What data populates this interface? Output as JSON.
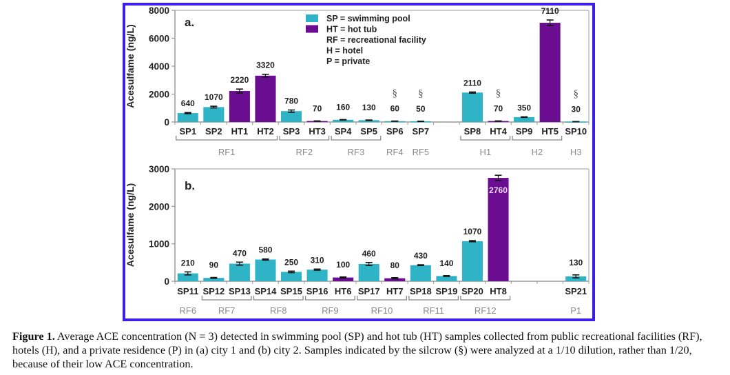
{
  "colors": {
    "frame": "#3b1ee8",
    "swimming_pool": "#2fb3c6",
    "hot_tub": "#6a0d91",
    "axis": "#999999",
    "group_label": "#8a8a8a",
    "value_label": "#222222"
  },
  "legend": {
    "items": [
      {
        "swatch": "swimming_pool",
        "text": "SP = swimming pool"
      },
      {
        "swatch": "hot_tub",
        "text": "HT = hot tub"
      },
      {
        "swatch": null,
        "text": "RF = recreational facility"
      },
      {
        "swatch": null,
        "text": "H   = hotel"
      },
      {
        "swatch": null,
        "text": "P   = private"
      }
    ]
  },
  "chart_data": [
    {
      "type": "bar",
      "panel_label": "a.",
      "ylabel": "Acesulfame (ng/L)",
      "ylim": [
        0,
        8000
      ],
      "yticks": [
        0,
        2000,
        4000,
        6000,
        8000
      ],
      "slots": 16,
      "legend_position": "top-center",
      "bars": [
        {
          "slot": 0,
          "label": "SP1",
          "kind": "SP",
          "value": 640,
          "err": 40,
          "value_label": "640"
        },
        {
          "slot": 1,
          "label": "SP2",
          "kind": "SP",
          "value": 1070,
          "err": 60,
          "value_label": "1070"
        },
        {
          "slot": 2,
          "label": "HT1",
          "kind": "HT",
          "value": 2220,
          "err": 140,
          "value_label": "2220"
        },
        {
          "slot": 3,
          "label": "HT2",
          "kind": "HT",
          "value": 3320,
          "err": 100,
          "value_label": "3320"
        },
        {
          "slot": 4,
          "label": "SP3",
          "kind": "SP",
          "value": 780,
          "err": 80,
          "value_label": "780"
        },
        {
          "slot": 5,
          "label": "HT3",
          "kind": "HT",
          "value": 70,
          "err": 10,
          "value_label": "70"
        },
        {
          "slot": 6,
          "label": "SP4",
          "kind": "SP",
          "value": 160,
          "err": 15,
          "value_label": "160"
        },
        {
          "slot": 7,
          "label": "SP5",
          "kind": "SP",
          "value": 130,
          "err": 15,
          "value_label": "130"
        },
        {
          "slot": 8,
          "label": "SP6",
          "kind": "SP",
          "value": 60,
          "err": 10,
          "value_label": "60",
          "silcrow": true
        },
        {
          "slot": 9,
          "label": "SP7",
          "kind": "SP",
          "value": 50,
          "err": 10,
          "value_label": "50",
          "silcrow": true
        },
        {
          "slot": 11,
          "label": "SP8",
          "kind": "SP",
          "value": 2110,
          "err": 40,
          "value_label": "2110"
        },
        {
          "slot": 12,
          "label": "HT4",
          "kind": "HT",
          "value": 70,
          "err": 10,
          "value_label": "70",
          "silcrow": true
        },
        {
          "slot": 13,
          "label": "SP9",
          "kind": "SP",
          "value": 350,
          "err": 20,
          "value_label": "350"
        },
        {
          "slot": 14,
          "label": "HT5",
          "kind": "HT",
          "value": 7110,
          "err": 200,
          "value_label": "7110"
        },
        {
          "slot": 15,
          "label": "SP10",
          "kind": "SP",
          "value": 30,
          "err": 5,
          "value_label": "30",
          "silcrow": true
        }
      ],
      "groups": [
        {
          "label": "RF1",
          "from": 0,
          "to": 3,
          "bracket": true
        },
        {
          "label": "RF2",
          "from": 4,
          "to": 5,
          "bracket": true
        },
        {
          "label": "RF3",
          "from": 6,
          "to": 7,
          "bracket": true
        },
        {
          "label": "RF4",
          "from": 8,
          "to": 8,
          "bracket": false
        },
        {
          "label": "RF5",
          "from": 9,
          "to": 9,
          "bracket": false
        },
        {
          "label": "H1",
          "from": 11,
          "to": 12,
          "bracket": true
        },
        {
          "label": "H2",
          "from": 13,
          "to": 14,
          "bracket": true
        },
        {
          "label": "H3",
          "from": 15,
          "to": 15,
          "bracket": false
        }
      ]
    },
    {
      "type": "bar",
      "panel_label": "b.",
      "ylabel": "Acesulfame (ng/L)",
      "ylim": [
        0,
        3000
      ],
      "yticks": [
        0,
        1000,
        2000,
        3000
      ],
      "slots": 16,
      "bars": [
        {
          "slot": 0,
          "label": "SP11",
          "kind": "SP",
          "value": 210,
          "err": 40,
          "value_label": "210"
        },
        {
          "slot": 1,
          "label": "SP12",
          "kind": "SP",
          "value": 90,
          "err": 10,
          "value_label": "90"
        },
        {
          "slot": 2,
          "label": "SP13",
          "kind": "SP",
          "value": 470,
          "err": 40,
          "value_label": "470"
        },
        {
          "slot": 3,
          "label": "SP14",
          "kind": "SP",
          "value": 580,
          "err": 15,
          "value_label": "580"
        },
        {
          "slot": 4,
          "label": "SP15",
          "kind": "SP",
          "value": 250,
          "err": 20,
          "value_label": "250"
        },
        {
          "slot": 5,
          "label": "SP16",
          "kind": "SP",
          "value": 310,
          "err": 15,
          "value_label": "310"
        },
        {
          "slot": 6,
          "label": "HT6",
          "kind": "HT",
          "value": 100,
          "err": 15,
          "value_label": "100"
        },
        {
          "slot": 7,
          "label": "SP17",
          "kind": "SP",
          "value": 460,
          "err": 40,
          "value_label": "460"
        },
        {
          "slot": 8,
          "label": "HT7",
          "kind": "HT",
          "value": 80,
          "err": 15,
          "value_label": "80"
        },
        {
          "slot": 9,
          "label": "SP18",
          "kind": "SP",
          "value": 430,
          "err": 10,
          "value_label": "430"
        },
        {
          "slot": 10,
          "label": "SP19",
          "kind": "SP",
          "value": 140,
          "err": 10,
          "value_label": "140"
        },
        {
          "slot": 11,
          "label": "SP20",
          "kind": "SP",
          "value": 1070,
          "err": 15,
          "value_label": "1070"
        },
        {
          "slot": 12,
          "label": "HT8",
          "kind": "HT",
          "value": 2760,
          "err": 70,
          "value_label": "2760",
          "label_inside": true
        },
        {
          "slot": 15,
          "label": "SP21",
          "kind": "SP",
          "value": 130,
          "err": 40,
          "value_label": "130"
        }
      ],
      "groups": [
        {
          "label": "RF6",
          "from": 0,
          "to": 0,
          "bracket": false
        },
        {
          "label": "RF7",
          "from": 1,
          "to": 2,
          "bracket": true
        },
        {
          "label": "RF8",
          "from": 3,
          "to": 4,
          "bracket": true
        },
        {
          "label": "RF9",
          "from": 5,
          "to": 6,
          "bracket": true
        },
        {
          "label": "RF10",
          "from": 7,
          "to": 8,
          "bracket": true
        },
        {
          "label": "RF11",
          "from": 9,
          "to": 10,
          "bracket": true
        },
        {
          "label": "RF12",
          "from": 11,
          "to": 12,
          "bracket": true
        },
        {
          "label": "P1",
          "from": 15,
          "to": 15,
          "bracket": false
        }
      ]
    }
  ],
  "caption": {
    "lead": "Figure 1.",
    "text": " Average ACE concentration (N = 3) detected in swimming pool (SP) and hot tub (HT) samples collected from public recreational facilities (RF), hotels (H), and a private residence (P) in (a) city 1 and (b) city 2. Samples indicated by the silcrow (§) were analyzed at a 1/10 dilution, rather than 1/20, because of their low ACE concentration.",
    "silcrow": "§"
  }
}
